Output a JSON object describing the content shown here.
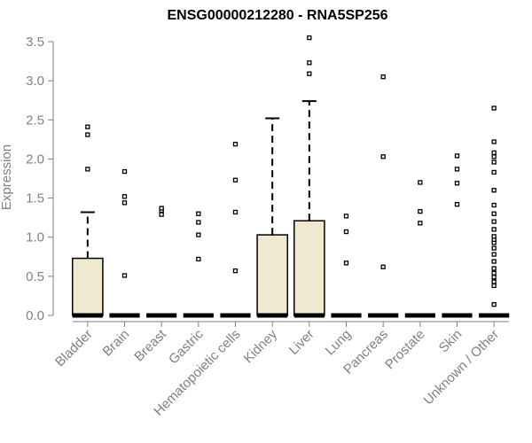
{
  "chart_data": {
    "type": "box",
    "title": "ENSG00000212280 - RNA5SP256",
    "xlabel": "",
    "ylabel": "Expression",
    "ylim": [
      0,
      3.5
    ],
    "yticks": [
      "0.0",
      "0.5",
      "1.0",
      "1.5",
      "2.0",
      "2.5",
      "3.0",
      "3.5"
    ],
    "grid": false,
    "box_fill": "#efe9cf",
    "box_stroke": "#000000",
    "categories": [
      "Bladder",
      "Brain",
      "Breast",
      "Gastric",
      "Hematopoietic cells",
      "Kidney",
      "Liver",
      "Lung",
      "Pancreas",
      "Prostate",
      "Skin",
      "Unknown / Other"
    ],
    "boxes": [
      {
        "q1": 0,
        "median": 0,
        "q3": 0.73,
        "whisker_low": 0,
        "whisker_high": 1.32,
        "outliers": [
          1.87,
          2.31,
          2.41
        ]
      },
      {
        "q1": 0,
        "median": 0,
        "q3": 0,
        "whisker_low": 0,
        "whisker_high": 0,
        "outliers": [
          0.51,
          1.44,
          1.52,
          1.84
        ]
      },
      {
        "q1": 0,
        "median": 0,
        "q3": 0,
        "whisker_low": 0,
        "whisker_high": 0,
        "outliers": [
          1.29,
          1.34,
          1.37
        ]
      },
      {
        "q1": 0,
        "median": 0,
        "q3": 0,
        "whisker_low": 0,
        "whisker_high": 0,
        "outliers": [
          0.72,
          1.03,
          1.19,
          1.3
        ]
      },
      {
        "q1": 0,
        "median": 0,
        "q3": 0,
        "whisker_low": 0,
        "whisker_high": 0,
        "outliers": [
          0.57,
          1.32,
          1.73,
          2.19
        ]
      },
      {
        "q1": 0,
        "median": 0,
        "q3": 1.03,
        "whisker_low": 0,
        "whisker_high": 2.52,
        "outliers": []
      },
      {
        "q1": 0,
        "median": 0,
        "q3": 1.21,
        "whisker_low": 0,
        "whisker_high": 2.74,
        "outliers": [
          3.09,
          3.23,
          3.55
        ]
      },
      {
        "q1": 0,
        "median": 0,
        "q3": 0,
        "whisker_low": 0,
        "whisker_high": 0,
        "outliers": [
          0.67,
          1.07,
          1.27
        ]
      },
      {
        "q1": 0,
        "median": 0,
        "q3": 0,
        "whisker_low": 0,
        "whisker_high": 0,
        "outliers": [
          0.62,
          2.03,
          3.05
        ]
      },
      {
        "q1": 0,
        "median": 0,
        "q3": 0,
        "whisker_low": 0,
        "whisker_high": 0,
        "outliers": [
          1.18,
          1.33,
          1.7
        ]
      },
      {
        "q1": 0,
        "median": 0,
        "q3": 0,
        "whisker_low": 0,
        "whisker_high": 0,
        "outliers": [
          1.42,
          1.69,
          1.87,
          2.04
        ]
      },
      {
        "q1": 0,
        "median": 0,
        "q3": 0,
        "whisker_low": 0,
        "whisker_high": 0,
        "outliers": [
          0.14,
          0.38,
          0.43,
          0.49,
          0.54,
          0.6,
          0.69,
          0.78,
          0.86,
          0.93,
          0.97,
          1.01,
          1.1,
          1.2,
          1.3,
          1.41,
          1.6,
          1.83,
          1.96,
          2.03,
          2.08,
          2.22,
          2.65
        ]
      }
    ]
  }
}
